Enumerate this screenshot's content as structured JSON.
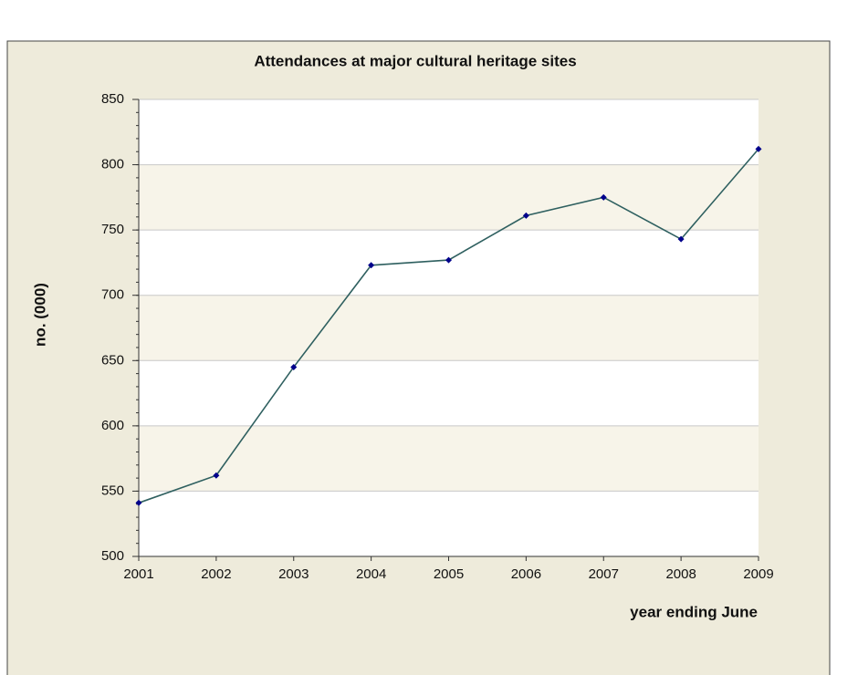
{
  "chart_data": {
    "type": "line",
    "title": "Attendances at major cultural heritage sites",
    "y_label": "no. (000)",
    "x_label": "year ending June",
    "categories": [
      "2001",
      "2002",
      "2003",
      "2004",
      "2005",
      "2006",
      "2007",
      "2008",
      "2009"
    ],
    "series": [
      {
        "name": "Attendances",
        "color": "#2f6060",
        "marker_color": "#00008b",
        "values": [
          541,
          562,
          645,
          723,
          727,
          761,
          775,
          743,
          812
        ]
      }
    ],
    "ylim": [
      500,
      850
    ],
    "yticks": [
      500,
      550,
      600,
      650,
      700,
      750,
      800,
      850
    ],
    "grid": true
  }
}
